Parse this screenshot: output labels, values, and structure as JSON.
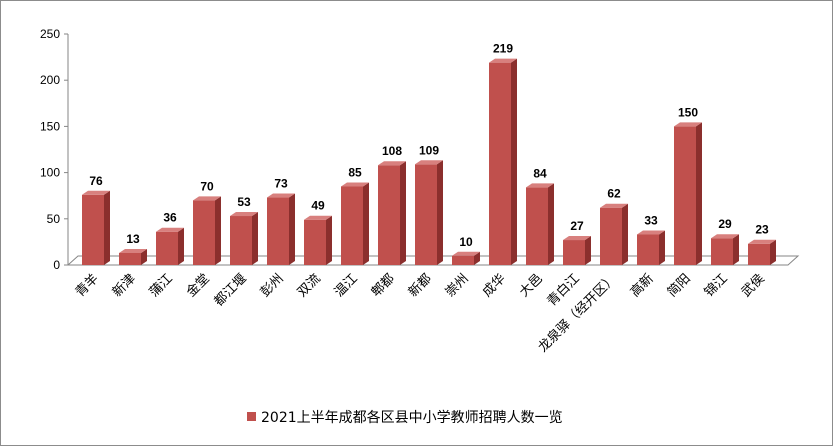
{
  "chart_data": {
    "type": "bar",
    "categories": [
      "青羊",
      "新津",
      "蒲江",
      "金堂",
      "都江堰",
      "彭州",
      "双流",
      "温江",
      "郫都",
      "新都",
      "崇州",
      "成华",
      "大邑",
      "青白江",
      "龙泉驿（经开区）",
      "高新",
      "简阳",
      "锦江",
      "武侯"
    ],
    "series": [
      {
        "name": "2021上半年成都各区县中小学教师招聘人数一览",
        "values": [
          76,
          13,
          36,
          70,
          53,
          73,
          49,
          85,
          108,
          109,
          10,
          219,
          84,
          27,
          62,
          33,
          150,
          29,
          23
        ]
      }
    ],
    "ylim": [
      0,
      250
    ],
    "yticks": [
      0,
      50,
      100,
      150,
      200,
      250
    ],
    "grid": false,
    "legend_position": "bottom",
    "style": "3d-column",
    "colors": {
      "bar_front": "#c0504d",
      "bar_side": "#8b2f2d",
      "bar_top": "#d8807e",
      "axis": "#868686"
    }
  }
}
